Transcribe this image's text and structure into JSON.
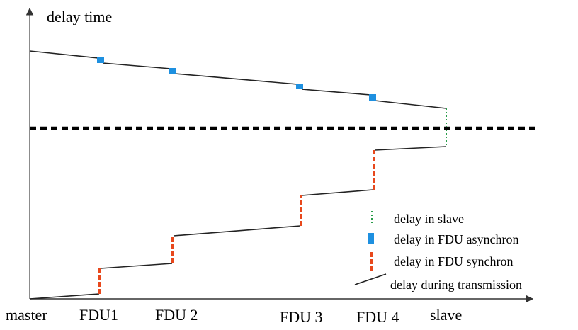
{
  "diagram": {
    "y_axis_label": "delay time",
    "x_nodes": [
      "master",
      "FDU1",
      "FDU 2",
      "FDU 3",
      "FDU 4",
      "slave"
    ],
    "legend": {
      "slave": "delay in slave",
      "fdu_async": "delay in FDU asynchron",
      "fdu_sync": "delay in FDU synchron",
      "transmission": "delay during transmission"
    },
    "colors": {
      "line": "#222222",
      "async": "#1e90e0",
      "sync": "#e8481c",
      "slave": "#2a9d4a",
      "reference": "#000000"
    }
  }
}
